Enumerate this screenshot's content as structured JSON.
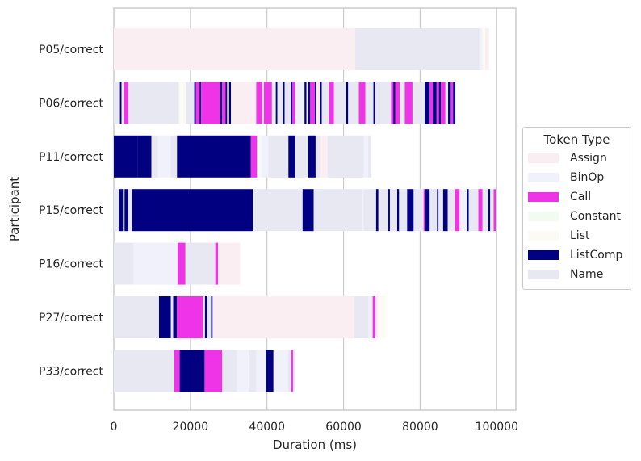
{
  "chart_data": {
    "type": "bar",
    "orientation": "horizontal",
    "stacked_timeline": true,
    "xlabel": "Duration (ms)",
    "ylabel": "Participant",
    "xlim": [
      0,
      105000
    ],
    "xticks": [
      0,
      20000,
      40000,
      60000,
      80000,
      100000
    ],
    "xtick_labels": [
      "0",
      "20000",
      "40000",
      "60000",
      "80000",
      "100000"
    ],
    "grid": true,
    "legend": {
      "title": "Token Type",
      "placement": "right",
      "entries": [
        "Assign",
        "BinOp",
        "Call",
        "Constant",
        "List",
        "ListComp",
        "Name"
      ]
    },
    "colors": {
      "Assign": "#fbeef3",
      "BinOp": "#f1f1fb",
      "Call": "#ef33e6",
      "Constant": "#f1fbf1",
      "List": "#fbfbf4",
      "ListComp": "#000080",
      "Name": "#e8e8f3"
    },
    "participants": [
      "P05/correct",
      "P06/correct",
      "P11/correct",
      "P15/correct",
      "P16/correct",
      "P27/correct",
      "P33/correct"
    ],
    "segments": {
      "P05/correct": [
        [
          "Assign",
          0,
          63000
        ],
        [
          "Name",
          63000,
          95500
        ],
        [
          "BinOp",
          95500,
          96300
        ],
        [
          "List",
          96300,
          97000
        ],
        [
          "Assign",
          97000,
          98000
        ]
      ],
      "P06/correct": [
        [
          "Name",
          0,
          1600
        ],
        [
          "ListComp",
          1600,
          2000
        ],
        [
          "BinOp",
          2000,
          2600
        ],
        [
          "Call",
          2600,
          3800
        ],
        [
          "Name",
          3800,
          17000
        ],
        [
          "List",
          17000,
          18800
        ],
        [
          "Name",
          18800,
          21000
        ],
        [
          "ListComp",
          21000,
          21400
        ],
        [
          "Call",
          21400,
          22400
        ],
        [
          "ListComp",
          22400,
          22800
        ],
        [
          "Call",
          22800,
          27800
        ],
        [
          "ListComp",
          27800,
          28300
        ],
        [
          "Call",
          28300,
          29200
        ],
        [
          "ListComp",
          29200,
          29600
        ],
        [
          "Assign",
          29600,
          30100
        ],
        [
          "ListComp",
          30100,
          30600
        ],
        [
          "Assign",
          30600,
          37200
        ],
        [
          "Call",
          37200,
          38700
        ],
        [
          "Assign",
          38700,
          39200
        ],
        [
          "Call",
          39200,
          41300
        ],
        [
          "BinOp",
          41300,
          42300
        ],
        [
          "ListComp",
          42300,
          42700
        ],
        [
          "Name",
          42700,
          44200
        ],
        [
          "ListComp",
          44200,
          44600
        ],
        [
          "Name",
          44600,
          46200
        ],
        [
          "ListComp",
          46200,
          46600
        ],
        [
          "Call",
          46600,
          47400
        ],
        [
          "BinOp",
          47400,
          49800
        ],
        [
          "ListComp",
          49800,
          50300
        ],
        [
          "Name",
          50300,
          50800
        ],
        [
          "ListComp",
          50800,
          51300
        ],
        [
          "Call",
          51300,
          52500
        ],
        [
          "ListComp",
          52500,
          52900
        ],
        [
          "Assign",
          52900,
          53800
        ],
        [
          "ListComp",
          53800,
          54300
        ],
        [
          "Name",
          54300,
          56200
        ],
        [
          "Call",
          56200,
          57500
        ],
        [
          "Name",
          57500,
          60700
        ],
        [
          "ListComp",
          60700,
          61200
        ],
        [
          "Name",
          61200,
          64000
        ],
        [
          "Call",
          64000,
          65700
        ],
        [
          "Name",
          65700,
          67800
        ],
        [
          "ListComp",
          67800,
          68300
        ],
        [
          "Name",
          68300,
          72400
        ],
        [
          "Call",
          72400,
          73000
        ],
        [
          "ListComp",
          73000,
          73500
        ],
        [
          "Call",
          73500,
          74700
        ],
        [
          "Name",
          74700,
          76000
        ],
        [
          "Call",
          76000,
          78000
        ],
        [
          "Name",
          78000,
          81200
        ],
        [
          "ListComp",
          81200,
          82500
        ],
        [
          "Call",
          82500,
          83300
        ],
        [
          "ListComp",
          83300,
          84300
        ],
        [
          "Call",
          84300,
          84900
        ],
        [
          "ListComp",
          84900,
          85400
        ],
        [
          "Call",
          85400,
          86600
        ],
        [
          "Name",
          86600,
          87300
        ],
        [
          "ListComp",
          87300,
          88000
        ],
        [
          "Call",
          88000,
          88600
        ],
        [
          "ListComp",
          88600,
          89200
        ]
      ],
      "P11/correct": [
        [
          "ListComp",
          0,
          6200
        ],
        [
          "ListComp",
          6200,
          9800
        ],
        [
          "Name",
          9800,
          11500
        ],
        [
          "BinOp",
          11500,
          14800
        ],
        [
          "Name",
          14800,
          16500
        ],
        [
          "ListComp",
          16500,
          35800
        ],
        [
          "Call",
          35800,
          37400
        ],
        [
          "Constant",
          37400,
          38600
        ],
        [
          "BinOp",
          38600,
          40300
        ],
        [
          "Name",
          40300,
          45600
        ],
        [
          "ListComp",
          45600,
          47400
        ],
        [
          "Name",
          47400,
          50800
        ],
        [
          "ListComp",
          50800,
          52700
        ],
        [
          "Name",
          52700,
          53800
        ],
        [
          "Assign",
          53800,
          55800
        ],
        [
          "Name",
          55800,
          65300
        ],
        [
          "BinOp",
          65300,
          66400
        ],
        [
          "Name",
          66400,
          67300
        ]
      ],
      "P15/correct": [
        [
          "Name",
          0,
          1300
        ],
        [
          "ListComp",
          1300,
          2400
        ],
        [
          "BinOp",
          2400,
          2800
        ],
        [
          "ListComp",
          2800,
          3800
        ],
        [
          "Name",
          3800,
          4700
        ],
        [
          "ListComp",
          4700,
          36300
        ],
        [
          "Name",
          36300,
          49300
        ],
        [
          "ListComp",
          49300,
          52200
        ],
        [
          "Name",
          52200,
          64800
        ],
        [
          "BinOp",
          64800,
          65200
        ],
        [
          "Name",
          65200,
          68500
        ],
        [
          "ListComp",
          68500,
          69100
        ],
        [
          "Name",
          69100,
          71600
        ],
        [
          "ListComp",
          71600,
          72100
        ],
        [
          "Name",
          72100,
          74000
        ],
        [
          "ListComp",
          74000,
          74500
        ],
        [
          "Name",
          74500,
          76600
        ],
        [
          "ListComp",
          76600,
          78300
        ],
        [
          "Name",
          78300,
          80900
        ],
        [
          "Call",
          80900,
          81300
        ],
        [
          "ListComp",
          81300,
          82500
        ],
        [
          "Name",
          82500,
          84400
        ],
        [
          "ListComp",
          84400,
          84800
        ],
        [
          "Name",
          84800,
          86000
        ],
        [
          "ListComp",
          86000,
          87200
        ],
        [
          "Name",
          87200,
          89100
        ],
        [
          "Call",
          89100,
          90300
        ],
        [
          "BinOp",
          90300,
          92200
        ],
        [
          "ListComp",
          92200,
          92700
        ],
        [
          "Name",
          92700,
          95200
        ],
        [
          "Call",
          95200,
          96300
        ],
        [
          "Name",
          96300,
          97800
        ],
        [
          "ListComp",
          97800,
          98300
        ],
        [
          "Name",
          98300,
          99200
        ],
        [
          "Call",
          99200,
          99800
        ]
      ],
      "P16/correct": [
        [
          "Name",
          0,
          5200
        ],
        [
          "BinOp",
          5200,
          16700
        ],
        [
          "Call",
          16700,
          18700
        ],
        [
          "Name",
          18700,
          26500
        ],
        [
          "Call",
          26500,
          27200
        ],
        [
          "Assign",
          27200,
          33000
        ]
      ],
      "P27/correct": [
        [
          "Name",
          0,
          11800
        ],
        [
          "ListComp",
          11800,
          14900
        ],
        [
          "Name",
          14900,
          15500
        ],
        [
          "ListComp",
          15500,
          16500
        ],
        [
          "Call",
          16500,
          23300
        ],
        [
          "Name",
          23300,
          23800
        ],
        [
          "ListComp",
          23800,
          24400
        ],
        [
          "Name",
          24400,
          25400
        ],
        [
          "ListComp",
          25400,
          25800
        ],
        [
          "Assign",
          25800,
          62800
        ],
        [
          "Name",
          62800,
          66500
        ],
        [
          "BinOp",
          66500,
          67600
        ],
        [
          "Call",
          67600,
          68300
        ],
        [
          "Assign",
          68300,
          69000
        ],
        [
          "List",
          69000,
          71000
        ]
      ],
      "P33/correct": [
        [
          "Name",
          0,
          15800
        ],
        [
          "Call",
          15800,
          17200
        ],
        [
          "ListComp",
          17200,
          23700
        ],
        [
          "Call",
          23700,
          28300
        ],
        [
          "Name",
          28300,
          32200
        ],
        [
          "BinOp",
          32200,
          35200
        ],
        [
          "Name",
          35200,
          37200
        ],
        [
          "BinOp",
          37200,
          39700
        ],
        [
          "ListComp",
          39700,
          41700
        ],
        [
          "BinOp",
          41700,
          45500
        ],
        [
          "Name",
          45500,
          46300
        ],
        [
          "Call",
          46300,
          46800
        ],
        [
          "Name",
          46800,
          47300
        ]
      ]
    }
  }
}
